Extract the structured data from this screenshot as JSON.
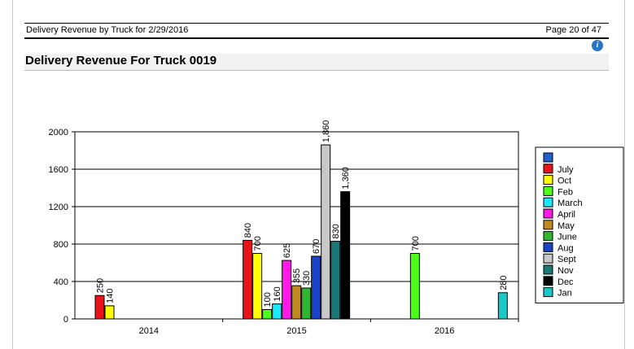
{
  "header": {
    "report_title": "Delivery Revenue by Truck for 2/29/2016",
    "page_number": "Page 20 of 47",
    "help_icon_glyph": "i"
  },
  "section": {
    "title": "Delivery Revenue For Truck 0019"
  },
  "chart_data": {
    "type": "bar",
    "title": "Delivery Revenue For Truck 0019",
    "xlabel": "",
    "ylabel": "",
    "ylim": [
      0,
      2000
    ],
    "yticks": [
      0,
      400,
      800,
      1200,
      1600,
      2000
    ],
    "ytick_labels": [
      "0",
      "400",
      "800",
      "1200",
      "1600",
      "2000"
    ],
    "gridlines": true,
    "legend_position": "right",
    "categories": [
      "2014",
      "2015",
      "2016"
    ],
    "legend": [
      {
        "name": "",
        "color": "#1f5fd1"
      },
      {
        "name": "July",
        "color": "#e8141a"
      },
      {
        "name": "Oct",
        "color": "#ffff00"
      },
      {
        "name": "Feb",
        "color": "#4cff1a"
      },
      {
        "name": "March",
        "color": "#1ae8ff"
      },
      {
        "name": "April",
        "color": "#ff1ae8"
      },
      {
        "name": "May",
        "color": "#c08a1f"
      },
      {
        "name": "June",
        "color": "#2fb82f"
      },
      {
        "name": "Aug",
        "color": "#1a44c8"
      },
      {
        "name": "Sept",
        "color": "#c8c8c8"
      },
      {
        "name": "Nov",
        "color": "#1a7878"
      },
      {
        "name": "Dec",
        "color": "#000000"
      },
      {
        "name": "Jan",
        "color": "#1ac8c8"
      }
    ],
    "bars": [
      {
        "category": "2014",
        "series": "July",
        "value": 250,
        "label": "250"
      },
      {
        "category": "2014",
        "series": "Oct",
        "value": 140,
        "label": "140"
      },
      {
        "category": "2015",
        "series": "July",
        "value": 840,
        "label": "840"
      },
      {
        "category": "2015",
        "series": "Oct",
        "value": 700,
        "label": "700"
      },
      {
        "category": "2015",
        "series": "Feb",
        "value": 100,
        "label": "100"
      },
      {
        "category": "2015",
        "series": "March",
        "value": 160,
        "label": "160"
      },
      {
        "category": "2015",
        "series": "April",
        "value": 625,
        "label": "625"
      },
      {
        "category": "2015",
        "series": "May",
        "value": 355,
        "label": "355"
      },
      {
        "category": "2015",
        "series": "June",
        "value": 330,
        "label": "330"
      },
      {
        "category": "2015",
        "series": "Aug",
        "value": 670,
        "label": "670"
      },
      {
        "category": "2015",
        "series": "Sept",
        "value": 1860,
        "label": "1,860"
      },
      {
        "category": "2015",
        "series": "Nov",
        "value": 830,
        "label": "830"
      },
      {
        "category": "2015",
        "series": "Dec",
        "value": 1360,
        "label": "1,360"
      },
      {
        "category": "2016",
        "series": "Feb",
        "value": 700,
        "label": "700"
      },
      {
        "category": "2016",
        "series": "Jan",
        "value": 280,
        "label": "280"
      }
    ]
  }
}
